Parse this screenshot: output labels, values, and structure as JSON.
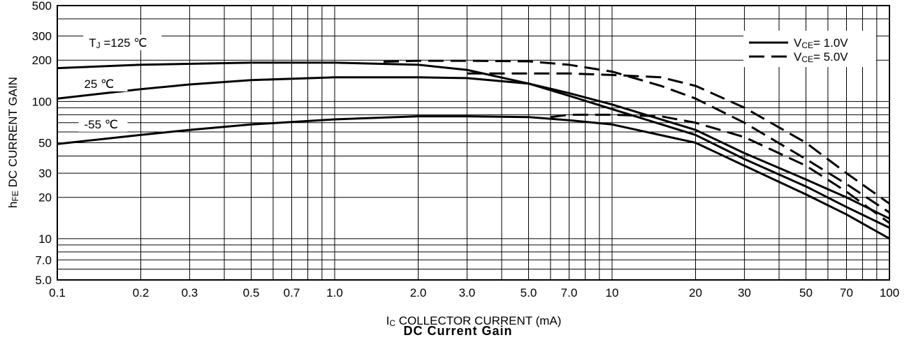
{
  "caption": "DC Current Gain",
  "chart_data": {
    "type": "line",
    "title": "DC Current Gain",
    "xlabel": {
      "prefix": "I",
      "sub": "C",
      "text": " COLLECTOR CURRENT (mA)"
    },
    "ylabel": {
      "prefix": "h",
      "sub": "FE",
      "text": " DC CURRENT GAIN"
    },
    "x_scale": "log",
    "y_scale": "log",
    "xlim": [
      0.1,
      100
    ],
    "ylim": [
      5,
      500
    ],
    "grid": true,
    "x_ticks": [
      {
        "v": 0.1,
        "label": "0.1"
      },
      {
        "v": 0.2,
        "label": "0.2"
      },
      {
        "v": 0.3,
        "label": "0.3"
      },
      {
        "v": 0.5,
        "label": "0.5"
      },
      {
        "v": 0.7,
        "label": "0.7"
      },
      {
        "v": 1,
        "label": "1.0"
      },
      {
        "v": 2,
        "label": "2.0"
      },
      {
        "v": 3,
        "label": "3.0"
      },
      {
        "v": 5,
        "label": "5.0"
      },
      {
        "v": 7,
        "label": "7.0"
      },
      {
        "v": 10,
        "label": "10"
      },
      {
        "v": 20,
        "label": "20"
      },
      {
        "v": 30,
        "label": "30"
      },
      {
        "v": 50,
        "label": "50"
      },
      {
        "v": 70,
        "label": "70"
      },
      {
        "v": 100,
        "label": "100"
      }
    ],
    "y_ticks": [
      {
        "v": 5,
        "label": "5.0"
      },
      {
        "v": 7,
        "label": "7.0"
      },
      {
        "v": 10,
        "label": "10"
      },
      {
        "v": 20,
        "label": "20"
      },
      {
        "v": 30,
        "label": "30"
      },
      {
        "v": 50,
        "label": "50"
      },
      {
        "v": 100,
        "label": "100"
      },
      {
        "v": 200,
        "label": "200"
      },
      {
        "v": 300,
        "label": "300"
      },
      {
        "v": 500,
        "label": "500"
      }
    ],
    "legend": {
      "position": "top-right",
      "entries": [
        {
          "prefix": "V",
          "sub": "CE",
          "text": "= 1.0V",
          "style": "solid"
        },
        {
          "prefix": "V",
          "sub": "CE",
          "text": "= 5.0V",
          "style": "dashed"
        }
      ]
    },
    "annotations": [
      {
        "prefix": "T",
        "sub": "J",
        "text": " =125 ℃",
        "at": [
          0.13,
          260
        ]
      },
      {
        "prefix": "",
        "sub": "",
        "text": "25 ℃",
        "at": [
          0.125,
          130
        ]
      },
      {
        "prefix": "",
        "sub": "",
        "text": "-55 ℃",
        "at": [
          0.125,
          66
        ]
      }
    ],
    "series": [
      {
        "style": "solid",
        "values": [
          [
            0.1,
            175
          ],
          [
            0.2,
            185
          ],
          [
            0.5,
            192
          ],
          [
            1,
            192
          ],
          [
            2,
            185
          ],
          [
            3,
            170
          ],
          [
            5,
            135
          ],
          [
            7,
            115
          ],
          [
            10,
            95
          ],
          [
            20,
            62
          ],
          [
            30,
            42
          ],
          [
            50,
            27
          ],
          [
            70,
            20
          ],
          [
            100,
            14
          ]
        ]
      },
      {
        "style": "solid",
        "values": [
          [
            0.1,
            105
          ],
          [
            0.2,
            123
          ],
          [
            0.3,
            133
          ],
          [
            0.5,
            143
          ],
          [
            1,
            150
          ],
          [
            2,
            150
          ],
          [
            3,
            148
          ],
          [
            5,
            135
          ],
          [
            7,
            110
          ],
          [
            10,
            88
          ],
          [
            20,
            57
          ],
          [
            30,
            38
          ],
          [
            50,
            24
          ],
          [
            70,
            17
          ],
          [
            100,
            12
          ]
        ]
      },
      {
        "style": "solid",
        "values": [
          [
            0.1,
            49
          ],
          [
            0.2,
            57
          ],
          [
            0.3,
            62
          ],
          [
            0.5,
            68
          ],
          [
            1,
            74
          ],
          [
            2,
            78
          ],
          [
            3,
            78
          ],
          [
            5,
            77
          ],
          [
            7,
            73
          ],
          [
            10,
            68
          ],
          [
            20,
            50
          ],
          [
            30,
            34
          ],
          [
            50,
            21
          ],
          [
            70,
            15
          ],
          [
            100,
            10
          ]
        ]
      },
      {
        "style": "dashed",
        "values": [
          [
            1.5,
            195
          ],
          [
            2,
            198
          ],
          [
            3,
            198
          ],
          [
            5,
            196
          ],
          [
            7,
            185
          ],
          [
            10,
            165
          ],
          [
            15,
            130
          ],
          [
            20,
            105
          ],
          [
            30,
            70
          ],
          [
            50,
            38
          ],
          [
            70,
            25
          ],
          [
            100,
            15.5
          ]
        ]
      },
      {
        "style": "dashed",
        "values": [
          [
            3,
            160
          ],
          [
            5,
            160
          ],
          [
            7,
            160
          ],
          [
            10,
            156
          ],
          [
            15,
            150
          ],
          [
            20,
            130
          ],
          [
            30,
            90
          ],
          [
            50,
            50
          ],
          [
            70,
            30
          ],
          [
            100,
            18
          ]
        ]
      },
      {
        "style": "dashed",
        "values": [
          [
            6,
            77
          ],
          [
            7,
            80
          ],
          [
            10,
            80
          ],
          [
            15,
            78
          ],
          [
            20,
            70
          ],
          [
            30,
            55
          ],
          [
            50,
            34
          ],
          [
            70,
            22
          ],
          [
            100,
            13
          ]
        ]
      }
    ]
  }
}
